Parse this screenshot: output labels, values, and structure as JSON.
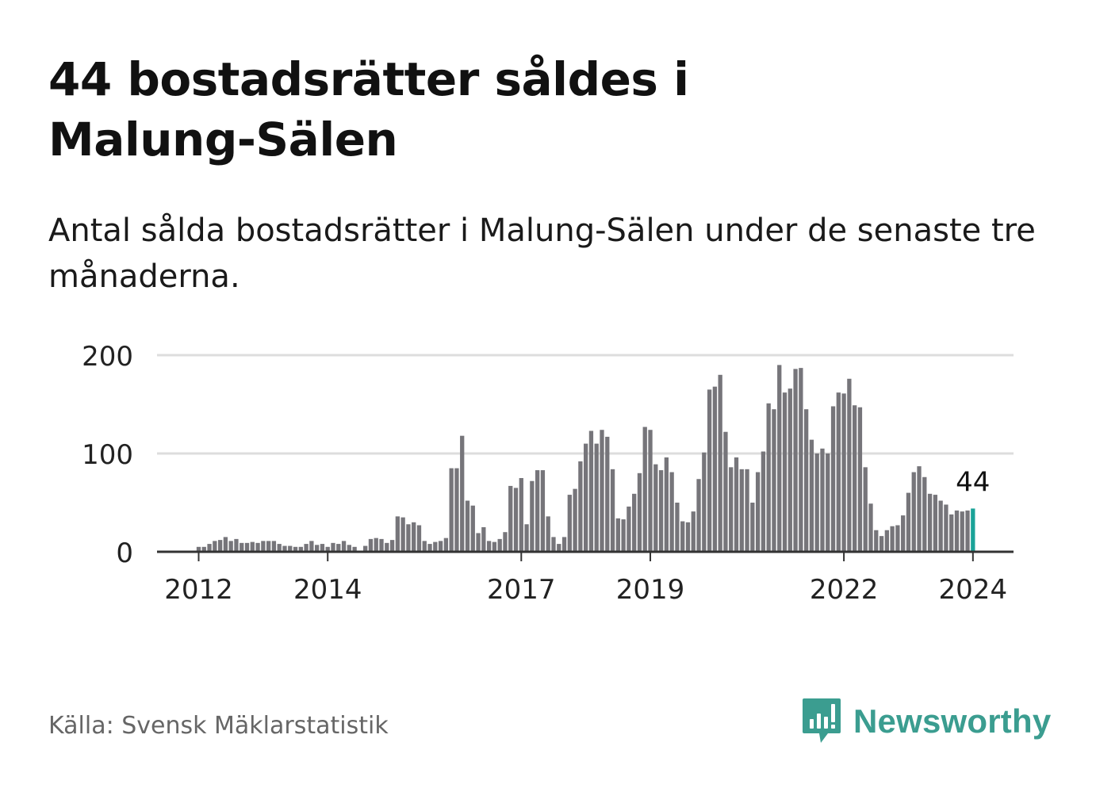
{
  "title": "44 bostadsrätter såldes i Malung-Sälen",
  "subtitle": "Antal sålda bostadsrätter i Malung-Sälen under de senaste tre månaderna.",
  "source": "Källa: Svensk Mäklarstatistik",
  "brand": {
    "name": "Newsworthy",
    "color": "#3b9d90"
  },
  "colors": {
    "bar": "#76757a",
    "highlight": "#1aa398",
    "grid": "#dddddd",
    "axis": "#333333",
    "text": "#222222"
  },
  "chart_data": {
    "type": "bar",
    "title": "44 bostadsrätter såldes i Malung-Sälen",
    "xlabel": "",
    "ylabel": "",
    "ylim": [
      0,
      200
    ],
    "yticks": [
      0,
      100,
      200
    ],
    "grid": true,
    "x_tick_labels": [
      {
        "label": "2012",
        "index": 0
      },
      {
        "label": "2014",
        "index": 24
      },
      {
        "label": "2017",
        "index": 60
      },
      {
        "label": "2019",
        "index": 84
      },
      {
        "label": "2022",
        "index": 120
      },
      {
        "label": "2024",
        "index": 144
      }
    ],
    "highlight_last": true,
    "last_label": "44",
    "categories": [
      "2012-01",
      "2012-02",
      "2012-03",
      "2012-04",
      "2012-05",
      "2012-06",
      "2012-07",
      "2012-08",
      "2012-09",
      "2012-10",
      "2012-11",
      "2012-12",
      "2013-01",
      "2013-02",
      "2013-03",
      "2013-04",
      "2013-05",
      "2013-06",
      "2013-07",
      "2013-08",
      "2013-09",
      "2013-10",
      "2013-11",
      "2013-12",
      "2014-01",
      "2014-02",
      "2014-03",
      "2014-04",
      "2014-05",
      "2014-06",
      "2014-07",
      "2014-08",
      "2014-09",
      "2014-10",
      "2014-11",
      "2014-12",
      "2015-01",
      "2015-02",
      "2015-03",
      "2015-04",
      "2015-05",
      "2015-06",
      "2015-07",
      "2015-08",
      "2015-09",
      "2015-10",
      "2015-11",
      "2015-12",
      "2016-01",
      "2016-02",
      "2016-03",
      "2016-04",
      "2016-05",
      "2016-06",
      "2016-07",
      "2016-08",
      "2016-09",
      "2016-10",
      "2016-11",
      "2016-12",
      "2017-01",
      "2017-02",
      "2017-03",
      "2017-04",
      "2017-05",
      "2017-06",
      "2017-07",
      "2017-08",
      "2017-09",
      "2017-10",
      "2017-11",
      "2017-12",
      "2018-01",
      "2018-02",
      "2018-03",
      "2018-04",
      "2018-05",
      "2018-06",
      "2018-07",
      "2018-08",
      "2018-09",
      "2018-10",
      "2018-11",
      "2018-12",
      "2019-01",
      "2019-02",
      "2019-03",
      "2019-04",
      "2019-05",
      "2019-06",
      "2019-07",
      "2019-08",
      "2019-09",
      "2019-10",
      "2019-11",
      "2019-12",
      "2020-01",
      "2020-02",
      "2020-03",
      "2020-04",
      "2020-05",
      "2020-06",
      "2020-07",
      "2020-08",
      "2020-09",
      "2020-10",
      "2020-11",
      "2020-12",
      "2021-01",
      "2021-02",
      "2021-03",
      "2021-04",
      "2021-05",
      "2021-06",
      "2021-07",
      "2021-08",
      "2021-09",
      "2021-10",
      "2021-11",
      "2021-12",
      "2022-01",
      "2022-02",
      "2022-03",
      "2022-04",
      "2022-05",
      "2022-06",
      "2022-07",
      "2022-08",
      "2022-09",
      "2022-10",
      "2022-11",
      "2022-12",
      "2023-01",
      "2023-02",
      "2023-03",
      "2023-04",
      "2023-05",
      "2023-06",
      "2023-07",
      "2023-08",
      "2023-09",
      "2023-10",
      "2023-11",
      "2023-12",
      "2024-01"
    ],
    "values": [
      5,
      5,
      8,
      11,
      12,
      15,
      11,
      13,
      9,
      9,
      10,
      9,
      11,
      11,
      11,
      8,
      6,
      6,
      5,
      5,
      8,
      11,
      7,
      8,
      5,
      9,
      8,
      11,
      7,
      5,
      1,
      6,
      13,
      14,
      13,
      9,
      12,
      36,
      35,
      28,
      30,
      27,
      11,
      8,
      10,
      11,
      14,
      85,
      85,
      118,
      52,
      47,
      19,
      25,
      11,
      10,
      13,
      20,
      67,
      65,
      75,
      28,
      72,
      83,
      83,
      36,
      15,
      8,
      15,
      58,
      64,
      92,
      110,
      123,
      110,
      124,
      117,
      84,
      34,
      33,
      46,
      59,
      80,
      127,
      124,
      89,
      83,
      96,
      81,
      50,
      31,
      30,
      41,
      74,
      101,
      165,
      168,
      180,
      122,
      86,
      96,
      84,
      84,
      50,
      81,
      102,
      151,
      145,
      190,
      162,
      166,
      186,
      187,
      145,
      114,
      100,
      105,
      100,
      148,
      162,
      161,
      176,
      149,
      147,
      86,
      49,
      22,
      16,
      22,
      26,
      27,
      37,
      60,
      81,
      87,
      76,
      59,
      58,
      52,
      48,
      38,
      42,
      41,
      42,
      44
    ]
  }
}
